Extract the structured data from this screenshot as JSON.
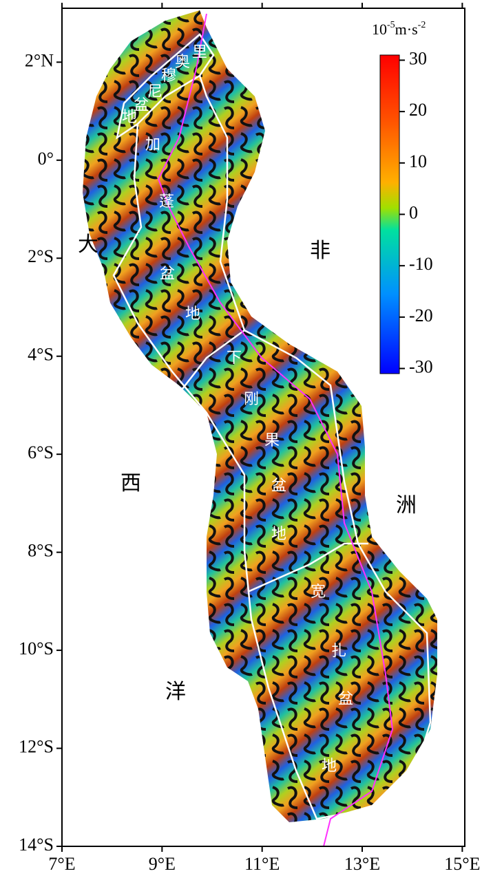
{
  "map": {
    "unit": [
      "10",
      "-5",
      "m·s",
      "-2"
    ],
    "xlim": [
      7,
      15.05
    ],
    "ylim": [
      -14,
      3.1
    ],
    "xticks": [
      {
        "value": 7,
        "label": "7°E"
      },
      {
        "value": 9,
        "label": "9°E"
      },
      {
        "value": 11,
        "label": "11°E"
      },
      {
        "value": 13,
        "label": "13°E"
      },
      {
        "value": 15,
        "label": "15°E"
      }
    ],
    "yticks": [
      {
        "value": 2,
        "label": "2°N"
      },
      {
        "value": 0,
        "label": "0°"
      },
      {
        "value": -2,
        "label": "2°S"
      },
      {
        "value": -4,
        "label": "4°S"
      },
      {
        "value": -6,
        "label": "6°S"
      },
      {
        "value": -8,
        "label": "8°S"
      },
      {
        "value": -10,
        "label": "10°S"
      },
      {
        "value": -12,
        "label": "12°S"
      },
      {
        "value": -14,
        "label": "14°S"
      }
    ],
    "colorbar": {
      "lim": [
        -31,
        31
      ],
      "ticks": [
        30,
        20,
        10,
        0,
        -10,
        -20,
        -30
      ]
    },
    "basin_labels": [
      "奥",
      "里",
      "穆",
      "尼",
      "盆",
      "地",
      "加",
      "蓬",
      "盆",
      "地",
      "下",
      "刚",
      "果",
      "盆",
      "地",
      "宽",
      "扎",
      "盆",
      "地"
    ],
    "region_labels": [
      "大",
      "西",
      "洋",
      "非",
      "洲"
    ]
  }
}
